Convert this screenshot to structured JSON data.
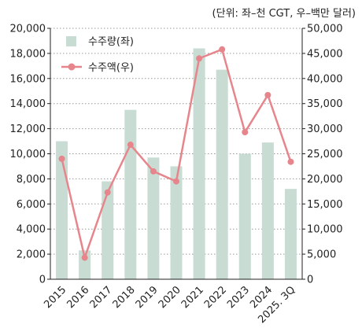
{
  "chart_data": {
    "type": "bar+line",
    "unit_note": "(단위: 좌–천 CGT, 우–백만 달러)",
    "categories": [
      "2015",
      "2016",
      "2017",
      "2018",
      "2019",
      "2020",
      "2021",
      "2022",
      "2023",
      "2024",
      "2025. 3Q"
    ],
    "series": [
      {
        "name": "수주량(좌)",
        "type": "bar",
        "axis": "left",
        "color": "#c8dcd3",
        "values": [
          11000,
          2300,
          7800,
          13500,
          9700,
          9000,
          18400,
          16700,
          10000,
          10900,
          7200
        ]
      },
      {
        "name": "수주액(우)",
        "type": "line",
        "axis": "right",
        "color": "#e6868c",
        "values": [
          24000,
          4300,
          17300,
          26800,
          21500,
          19500,
          44000,
          45800,
          29300,
          36700,
          23400
        ]
      }
    ],
    "y_left": {
      "min": 0,
      "max": 20000,
      "ticks": [
        "0",
        "2,000",
        "4,000",
        "6,000",
        "8,000",
        "10,000",
        "12,000",
        "14,000",
        "16,000",
        "18,000",
        "20,000"
      ]
    },
    "y_right": {
      "min": 0,
      "max": 50000,
      "ticks": [
        "0",
        "5,000",
        "10,000",
        "15,000",
        "20,000",
        "25,000",
        "30,000",
        "35,000",
        "40,000",
        "45,000",
        "50,000"
      ]
    },
    "grid": true,
    "legend": "top-left"
  }
}
